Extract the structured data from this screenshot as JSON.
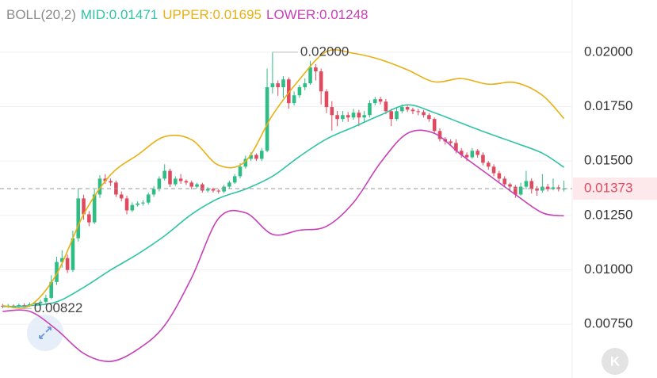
{
  "chart_data": {
    "type": "candlestick",
    "indicator": "BOLL(20,2)",
    "up_color": "#2ebd85",
    "down_color": "#e04a5f",
    "categories": [
      null,
      null,
      null,
      null,
      null,
      null,
      null,
      null,
      null,
      null,
      null,
      null,
      null,
      null,
      null,
      null,
      null,
      null,
      null,
      null,
      null,
      null,
      null,
      null,
      null,
      null,
      null,
      null,
      null,
      null,
      null,
      null,
      null,
      null,
      null,
      null,
      null,
      null,
      null,
      null,
      null,
      null,
      null,
      null,
      null,
      null,
      null,
      null,
      null,
      null,
      null,
      null,
      null,
      null,
      null,
      null,
      null,
      null,
      null,
      null,
      null,
      null,
      null,
      null,
      null,
      null,
      null,
      null,
      null,
      null,
      null,
      null,
      null,
      null,
      null,
      null,
      null,
      null,
      null,
      null,
      null,
      null,
      null,
      null,
      null,
      null,
      null,
      null,
      null,
      null,
      null,
      null,
      null,
      null,
      null,
      null,
      null,
      null,
      null,
      null,
      null,
      null,
      null,
      null,
      null
    ],
    "open": [
      0.00835,
      0.00831,
      0.00835,
      0.00831,
      0.00838,
      0.00835,
      0.00842,
      0.00846,
      0.00853,
      0.00871,
      0.00944,
      0.01036,
      0.01054,
      0.00999,
      0.01145,
      0.01328,
      0.01255,
      0.01218,
      0.01346,
      0.01419,
      0.01408,
      0.01401,
      0.01346,
      0.01328,
      0.01273,
      0.01298,
      0.01305,
      0.01309,
      0.01346,
      0.01371,
      0.01419,
      0.01455,
      0.01393,
      0.01419,
      0.01408,
      0.01401,
      0.01382,
      0.01393,
      0.01364,
      0.01371,
      0.01364,
      0.0136,
      0.01382,
      0.01401,
      0.0143,
      0.01474,
      0.0151,
      0.01528,
      0.0151,
      0.01547,
      0.01839,
      0.01857,
      0.01839,
      0.01875,
      0.01766,
      0.01802,
      0.01839,
      0.01857,
      0.0193,
      0.01912,
      0.0182,
      0.01748,
      0.01711,
      0.01693,
      0.01711,
      0.017,
      0.01722,
      0.017,
      0.01711,
      0.01766,
      0.01784,
      0.01773,
      0.01729,
      0.01693,
      0.01729,
      0.01748,
      0.01736,
      0.01729,
      0.01725,
      0.01711,
      0.01693,
      0.01638,
      0.01601,
      0.0159,
      0.01583,
      0.01547,
      0.01528,
      0.01517,
      0.01547,
      0.01528,
      0.01492,
      0.01474,
      0.01444,
      0.01419,
      0.01393,
      0.01382,
      0.01346,
      0.01382,
      0.01408,
      0.01371,
      0.01364,
      0.01382,
      0.01371,
      0.01379,
      0.01371
    ],
    "high": [
      0.00843,
      0.00843,
      0.00841,
      0.00845,
      0.00846,
      0.0085,
      0.00855,
      0.00862,
      0.00885,
      0.00975,
      0.0106,
      0.0109,
      0.0107,
      0.0118,
      0.01375,
      0.01345,
      0.0127,
      0.0137,
      0.01435,
      0.0144,
      0.0142,
      0.0141,
      0.0136,
      0.0134,
      0.0131,
      0.01315,
      0.0132,
      0.01355,
      0.01385,
      0.0143,
      0.01485,
      0.01465,
      0.0143,
      0.0144,
      0.01415,
      0.0141,
      0.014,
      0.014,
      0.0138,
      0.01378,
      0.01372,
      0.0139,
      0.0141,
      0.0144,
      0.0149,
      0.01525,
      0.0154,
      0.01535,
      0.0156,
      0.01925,
      0.02,
      0.0187,
      0.0189,
      0.01885,
      0.0182,
      0.0185,
      0.0188,
      0.0196,
      0.01945,
      0.01925,
      0.0183,
      0.01775,
      0.0173,
      0.0173,
      0.01725,
      0.0174,
      0.01735,
      0.0173,
      0.0178,
      0.01795,
      0.01795,
      0.01785,
      0.0174,
      0.01745,
      0.0176,
      0.01755,
      0.01745,
      0.0174,
      0.01735,
      0.0172,
      0.017,
      0.0165,
      0.0161,
      0.016,
      0.016,
      0.0156,
      0.0154,
      0.0156,
      0.01555,
      0.0154,
      0.015,
      0.01485,
      0.01455,
      0.0143,
      0.014,
      0.0139,
      0.014,
      0.01455,
      0.0142,
      0.01385,
      0.0144,
      0.01395,
      0.0142,
      0.0139,
      0.0141
    ],
    "low": [
      0.00823,
      0.00825,
      0.00826,
      0.00822,
      0.00829,
      0.0083,
      0.00836,
      0.0084,
      0.00845,
      0.00865,
      0.0093,
      0.0101,
      0.00985,
      0.0099,
      0.0113,
      0.0123,
      0.012,
      0.0121,
      0.0133,
      0.01395,
      0.01385,
      0.01335,
      0.01315,
      0.01255,
      0.01265,
      0.0129,
      0.01295,
      0.013,
      0.01335,
      0.0136,
      0.0141,
      0.0138,
      0.01385,
      0.01395,
      0.0139,
      0.0137,
      0.01375,
      0.01355,
      0.01355,
      0.01355,
      0.0135,
      0.01352,
      0.01375,
      0.01395,
      0.0142,
      0.01465,
      0.015,
      0.015,
      0.015,
      0.0154,
      0.0181,
      0.018,
      0.0179,
      0.0174,
      0.01755,
      0.0179,
      0.01825,
      0.0185,
      0.0187,
      0.0176,
      0.0172,
      0.0164,
      0.0166,
      0.0168,
      0.0168,
      0.0169,
      0.0166,
      0.0168,
      0.017,
      0.01755,
      0.0176,
      0.01715,
      0.0166,
      0.01685,
      0.0172,
      0.01725,
      0.01715,
      0.0171,
      0.017,
      0.0168,
      0.01625,
      0.0159,
      0.01575,
      0.0157,
      0.01535,
      0.01515,
      0.015,
      0.0151,
      0.01515,
      0.0148,
      0.0146,
      0.0143,
      0.01405,
      0.0138,
      0.0136,
      0.0133,
      0.0134,
      0.0137,
      0.0135,
      0.0134,
      0.01355,
      0.0136,
      0.01365,
      0.0136,
      0.0136
    ],
    "close": [
      0.00831,
      0.00835,
      0.00831,
      0.00838,
      0.00835,
      0.00842,
      0.00846,
      0.00853,
      0.00871,
      0.00944,
      0.01036,
      0.01054,
      0.00999,
      0.01145,
      0.01328,
      0.01255,
      0.01218,
      0.01346,
      0.01419,
      0.01408,
      0.01401,
      0.01346,
      0.01328,
      0.01273,
      0.01298,
      0.01305,
      0.01309,
      0.01346,
      0.01371,
      0.01419,
      0.01455,
      0.01393,
      0.01419,
      0.01408,
      0.01401,
      0.01382,
      0.01393,
      0.01364,
      0.01371,
      0.01364,
      0.0136,
      0.01382,
      0.01401,
      0.0143,
      0.01474,
      0.0151,
      0.01528,
      0.0151,
      0.01547,
      0.01839,
      0.01857,
      0.01839,
      0.01875,
      0.01766,
      0.01802,
      0.01839,
      0.01857,
      0.0193,
      0.01912,
      0.0182,
      0.01748,
      0.01711,
      0.01693,
      0.01711,
      0.017,
      0.01722,
      0.017,
      0.01711,
      0.01766,
      0.01784,
      0.01773,
      0.01729,
      0.01693,
      0.01729,
      0.01748,
      0.01736,
      0.01729,
      0.01725,
      0.01711,
      0.01693,
      0.01638,
      0.01601,
      0.0159,
      0.01583,
      0.01547,
      0.01528,
      0.01517,
      0.01547,
      0.01528,
      0.01492,
      0.01474,
      0.01444,
      0.01419,
      0.01393,
      0.01382,
      0.01346,
      0.01382,
      0.01408,
      0.01371,
      0.01364,
      0.01382,
      0.01371,
      0.01379,
      0.01371,
      0.01373
    ],
    "series": [
      {
        "name": "MID",
        "legend_label": "MID:0.01471",
        "color": "#2ec4a4",
        "x": [
          0,
          5,
          10,
          15,
          20,
          25,
          30,
          35,
          40,
          45,
          50,
          55,
          60,
          65,
          70,
          75,
          80,
          85,
          90,
          95,
          100,
          104
        ],
        "values": [
          0.00831,
          0.00835,
          0.00853,
          0.00919,
          0.00999,
          0.01072,
          0.01156,
          0.01255,
          0.01328,
          0.01371,
          0.0143,
          0.01521,
          0.01601,
          0.01656,
          0.01711,
          0.01758,
          0.01722,
          0.01674,
          0.01627,
          0.01583,
          0.01536,
          0.01471
        ]
      },
      {
        "name": "UPPER",
        "legend_label": "UPPER:0.01695",
        "color": "#e8b012",
        "x": [
          0,
          5,
          10,
          15,
          20,
          25,
          30,
          35,
          40,
          45,
          50,
          55,
          60,
          65,
          70,
          75,
          80,
          85,
          90,
          95,
          100,
          104
        ],
        "values": [
          0.00835,
          0.00835,
          0.00981,
          0.01255,
          0.01437,
          0.01528,
          0.01612,
          0.01598,
          0.01481,
          0.01499,
          0.01711,
          0.01875,
          0.02003,
          0.01995,
          0.01966,
          0.01919,
          0.01864,
          0.01879,
          0.01853,
          0.0186,
          0.01802,
          0.01695
        ]
      },
      {
        "name": "LOWER",
        "legend_label": "LOWER:0.01248",
        "color": "#c740b8",
        "x": [
          0,
          5,
          10,
          15,
          20,
          25,
          30,
          35,
          40,
          45,
          50,
          55,
          60,
          65,
          70,
          75,
          80,
          85,
          90,
          95,
          100,
          104
        ],
        "values": [
          0.00809,
          0.00809,
          0.00725,
          0.00616,
          0.00579,
          0.00634,
          0.00744,
          0.00963,
          0.01236,
          0.01262,
          0.01163,
          0.01182,
          0.012,
          0.01309,
          0.01492,
          0.01627,
          0.01627,
          0.01528,
          0.01437,
          0.01346,
          0.01262,
          0.01248
        ]
      }
    ],
    "ylim": [
      0.0051,
      0.0224
    ],
    "yticks": [
      {
        "value": 0.0075,
        "label": "0.00750"
      },
      {
        "value": 0.01,
        "label": "0.01000"
      },
      {
        "value": 0.0125,
        "label": "0.01250"
      },
      {
        "value": 0.015,
        "label": "0.01500"
      },
      {
        "value": 0.0175,
        "label": "0.01750"
      },
      {
        "value": 0.02,
        "label": "0.02000"
      }
    ],
    "grid": true,
    "last_price": {
      "value": 0.01373,
      "label": "0.01373"
    },
    "max_annotation": {
      "value": 0.02,
      "label": "0.02000"
    },
    "min_annotation": {
      "value": 0.00822,
      "label": "0.00822"
    },
    "corner_icon": "K"
  }
}
